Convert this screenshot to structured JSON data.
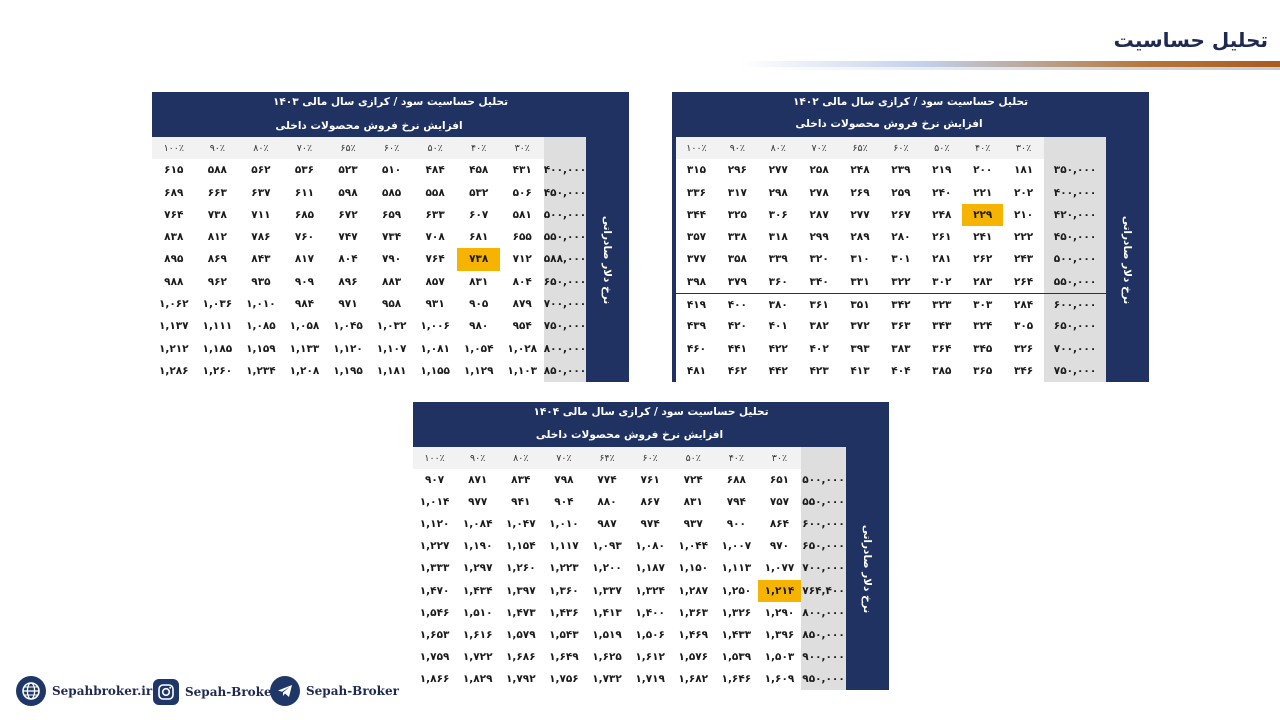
{
  "page": {
    "title": "تحلیل حساسیت"
  },
  "panels": {
    "p1402": {
      "title": "تحلیل حساسیت سود / کرازی سال مالی ۱۴۰۲",
      "subtitle": "افزایش نرخ فروش محصولات داخلی",
      "side_label": "نرخ دلار صادراتی",
      "cols": [
        "۳۰٪",
        "۴۰٪",
        "۵۰٪",
        "۶۰٪",
        "۶۵٪",
        "۷۰٪",
        "۸۰٪",
        "۹۰٪",
        "۱۰۰٪"
      ],
      "rows": [
        {
          "head": "۳۵۰,۰۰۰",
          "values": [
            "۱۸۱",
            "۲۰۰",
            "۲۱۹",
            "۲۳۹",
            "۲۴۸",
            "۲۵۸",
            "۲۷۷",
            "۲۹۶",
            "۳۱۵"
          ]
        },
        {
          "head": "۴۰۰,۰۰۰",
          "values": [
            "۲۰۲",
            "۲۲۱",
            "۲۴۰",
            "۲۵۹",
            "۲۶۹",
            "۲۷۸",
            "۲۹۸",
            "۳۱۷",
            "۳۳۶"
          ]
        },
        {
          "head": "۴۲۰,۰۰۰",
          "values": [
            "۲۱۰",
            "۲۲۹",
            "۲۴۸",
            "۲۶۷",
            "۲۷۷",
            "۲۸۷",
            "۳۰۶",
            "۳۲۵",
            "۳۴۴"
          ]
        },
        {
          "head": "۴۵۰,۰۰۰",
          "values": [
            "۲۲۲",
            "۲۴۱",
            "۲۶۱",
            "۲۸۰",
            "۲۸۹",
            "۲۹۹",
            "۳۱۸",
            "۳۳۸",
            "۳۵۷"
          ]
        },
        {
          "head": "۵۰۰,۰۰۰",
          "values": [
            "۲۴۳",
            "۲۶۲",
            "۲۸۱",
            "۳۰۱",
            "۳۱۰",
            "۳۲۰",
            "۳۳۹",
            "۳۵۸",
            "۳۷۷"
          ]
        },
        {
          "head": "۵۵۰,۰۰۰",
          "values": [
            "۲۶۴",
            "۲۸۳",
            "۳۰۲",
            "۳۲۲",
            "۳۳۱",
            "۳۴۰",
            "۳۶۰",
            "۳۷۹",
            "۳۹۸"
          ]
        },
        {
          "head": "۶۰۰,۰۰۰",
          "values": [
            "۲۸۴",
            "۳۰۳",
            "۳۲۳",
            "۳۴۲",
            "۳۵۱",
            "۳۶۱",
            "۳۸۰",
            "۴۰۰",
            "۴۱۹"
          ]
        },
        {
          "head": "۶۵۰,۰۰۰",
          "values": [
            "۳۰۵",
            "۳۲۴",
            "۳۴۳",
            "۳۶۳",
            "۳۷۲",
            "۳۸۲",
            "۴۰۱",
            "۴۲۰",
            "۴۳۹"
          ]
        },
        {
          "head": "۷۰۰,۰۰۰",
          "values": [
            "۳۲۶",
            "۳۴۵",
            "۳۶۴",
            "۳۸۳",
            "۳۹۳",
            "۴۰۲",
            "۴۲۲",
            "۴۴۱",
            "۴۶۰"
          ]
        },
        {
          "head": "۷۵۰,۰۰۰",
          "values": [
            "۳۴۶",
            "۳۶۵",
            "۳۸۵",
            "۴۰۴",
            "۴۱۳",
            "۴۲۳",
            "۴۴۲",
            "۴۶۲",
            "۴۸۱"
          ]
        }
      ],
      "highlight": {
        "row": 2,
        "col": 1
      }
    },
    "p1403": {
      "title": "تحلیل حساسیت سود / کرازی سال مالی ۱۴۰۳",
      "subtitle": "افزایش نرخ فروش محصولات داخلی",
      "side_label": "نرخ دلار صادراتی",
      "cols": [
        "۳۰٪",
        "۴۰٪",
        "۵۰٪",
        "۶۰٪",
        "۶۵٪",
        "۷۰٪",
        "۸۰٪",
        "۹۰٪",
        "۱۰۰٪"
      ],
      "rows": [
        {
          "head": "۴۰۰,۰۰۰",
          "values": [
            "۴۳۱",
            "۴۵۸",
            "۴۸۴",
            "۵۱۰",
            "۵۲۳",
            "۵۳۶",
            "۵۶۲",
            "۵۸۸",
            "۶۱۵"
          ]
        },
        {
          "head": "۴۵۰,۰۰۰",
          "values": [
            "۵۰۶",
            "۵۳۲",
            "۵۵۸",
            "۵۸۵",
            "۵۹۸",
            "۶۱۱",
            "۶۳۷",
            "۶۶۳",
            "۶۸۹"
          ]
        },
        {
          "head": "۵۰۰,۰۰۰",
          "values": [
            "۵۸۱",
            "۶۰۷",
            "۶۳۳",
            "۶۵۹",
            "۶۷۲",
            "۶۸۵",
            "۷۱۱",
            "۷۳۸",
            "۷۶۴"
          ]
        },
        {
          "head": "۵۵۰,۰۰۰",
          "values": [
            "۶۵۵",
            "۶۸۱",
            "۷۰۸",
            "۷۳۴",
            "۷۴۷",
            "۷۶۰",
            "۷۸۶",
            "۸۱۲",
            "۸۳۸"
          ]
        },
        {
          "head": "۵۸۸,۰۰۰",
          "values": [
            "۷۱۲",
            "۷۳۸",
            "۷۶۴",
            "۷۹۰",
            "۸۰۴",
            "۸۱۷",
            "۸۴۳",
            "۸۶۹",
            "۸۹۵"
          ]
        },
        {
          "head": "۶۵۰,۰۰۰",
          "values": [
            "۸۰۴",
            "۸۳۱",
            "۸۵۷",
            "۸۸۳",
            "۸۹۶",
            "۹۰۹",
            "۹۳۵",
            "۹۶۲",
            "۹۸۸"
          ]
        },
        {
          "head": "۷۰۰,۰۰۰",
          "values": [
            "۸۷۹",
            "۹۰۵",
            "۹۳۱",
            "۹۵۸",
            "۹۷۱",
            "۹۸۴",
            "۱,۰۱۰",
            "۱,۰۳۶",
            "۱,۰۶۲"
          ]
        },
        {
          "head": "۷۵۰,۰۰۰",
          "values": [
            "۹۵۴",
            "۹۸۰",
            "۱,۰۰۶",
            "۱,۰۳۲",
            "۱,۰۴۵",
            "۱,۰۵۸",
            "۱,۰۸۵",
            "۱,۱۱۱",
            "۱,۱۳۷"
          ]
        },
        {
          "head": "۸۰۰,۰۰۰",
          "values": [
            "۱,۰۲۸",
            "۱,۰۵۴",
            "۱,۰۸۱",
            "۱,۱۰۷",
            "۱,۱۲۰",
            "۱,۱۳۳",
            "۱,۱۵۹",
            "۱,۱۸۵",
            "۱,۲۱۲"
          ]
        },
        {
          "head": "۸۵۰,۰۰۰",
          "values": [
            "۱,۱۰۳",
            "۱,۱۲۹",
            "۱,۱۵۵",
            "۱,۱۸۱",
            "۱,۱۹۵",
            "۱,۲۰۸",
            "۱,۲۳۴",
            "۱,۲۶۰",
            "۱,۲۸۶"
          ]
        }
      ],
      "highlight": {
        "row": 4,
        "col": 1
      }
    },
    "p1404": {
      "title": "تحلیل حساسیت سود / کرازی سال مالی ۱۴۰۴",
      "subtitle": "افزایش نرخ فروش محصولات داخلی",
      "side_label": "نرخ دلار صادراتی",
      "cols": [
        "۳۰٪",
        "۴۰٪",
        "۵۰٪",
        "۶۰٪",
        "۶۴٪",
        "۷۰٪",
        "۸۰٪",
        "۹۰٪",
        "۱۰۰٪"
      ],
      "rows": [
        {
          "head": "۵۰۰,۰۰۰",
          "values": [
            "۶۵۱",
            "۶۸۸",
            "۷۲۴",
            "۷۶۱",
            "۷۷۴",
            "۷۹۸",
            "۸۳۴",
            "۸۷۱",
            "۹۰۷"
          ]
        },
        {
          "head": "۵۵۰,۰۰۰",
          "values": [
            "۷۵۷",
            "۷۹۴",
            "۸۳۱",
            "۸۶۷",
            "۸۸۰",
            "۹۰۴",
            "۹۴۱",
            "۹۷۷",
            "۱,۰۱۴"
          ]
        },
        {
          "head": "۶۰۰,۰۰۰",
          "values": [
            "۸۶۴",
            "۹۰۰",
            "۹۳۷",
            "۹۷۴",
            "۹۸۷",
            "۱,۰۱۰",
            "۱,۰۴۷",
            "۱,۰۸۴",
            "۱,۱۲۰"
          ]
        },
        {
          "head": "۶۵۰,۰۰۰",
          "values": [
            "۹۷۰",
            "۱,۰۰۷",
            "۱,۰۴۴",
            "۱,۰۸۰",
            "۱,۰۹۳",
            "۱,۱۱۷",
            "۱,۱۵۴",
            "۱,۱۹۰",
            "۱,۲۲۷"
          ]
        },
        {
          "head": "۷۰۰,۰۰۰",
          "values": [
            "۱,۰۷۷",
            "۱,۱۱۳",
            "۱,۱۵۰",
            "۱,۱۸۷",
            "۱,۲۰۰",
            "۱,۲۲۳",
            "۱,۲۶۰",
            "۱,۲۹۷",
            "۱,۳۳۳"
          ]
        },
        {
          "head": "۷۶۴,۴۰۰",
          "values": [
            "۱,۲۱۴",
            "۱,۲۵۰",
            "۱,۲۸۷",
            "۱,۳۲۴",
            "۱,۳۳۷",
            "۱,۳۶۰",
            "۱,۳۹۷",
            "۱,۴۳۴",
            "۱,۴۷۰"
          ]
        },
        {
          "head": "۸۰۰,۰۰۰",
          "values": [
            "۱,۲۹۰",
            "۱,۳۲۶",
            "۱,۳۶۳",
            "۱,۴۰۰",
            "۱,۴۱۳",
            "۱,۴۳۶",
            "۱,۴۷۳",
            "۱,۵۱۰",
            "۱,۵۴۶"
          ]
        },
        {
          "head": "۸۵۰,۰۰۰",
          "values": [
            "۱,۳۹۶",
            "۱,۴۳۳",
            "۱,۴۶۹",
            "۱,۵۰۶",
            "۱,۵۱۹",
            "۱,۵۴۳",
            "۱,۵۷۹",
            "۱,۶۱۶",
            "۱,۶۵۳"
          ]
        },
        {
          "head": "۹۰۰,۰۰۰",
          "values": [
            "۱,۵۰۳",
            "۱,۵۳۹",
            "۱,۵۷۶",
            "۱,۶۱۲",
            "۱,۶۲۵",
            "۱,۶۴۹",
            "۱,۶۸۶",
            "۱,۷۲۲",
            "۱,۷۵۹"
          ]
        },
        {
          "head": "۹۵۰,۰۰۰",
          "values": [
            "۱,۶۰۹",
            "۱,۶۴۶",
            "۱,۶۸۲",
            "۱,۷۱۹",
            "۱,۷۳۲",
            "۱,۷۵۶",
            "۱,۷۹۲",
            "۱,۸۲۹",
            "۱,۸۶۶"
          ]
        }
      ],
      "highlight": {
        "row": 5,
        "col": 0
      }
    }
  },
  "footer": {
    "website": "Sepahbroker.ir",
    "instagram": "Sepah-Broker",
    "telegram": "Sepah-Broker",
    "icon_website": "globe-icon",
    "icon_instagram": "instagram-icon",
    "icon_telegram": "telegram-icon"
  },
  "colors": {
    "panel": "#1f3262",
    "highlight": "#f6b400",
    "row_header": "#dedede"
  }
}
